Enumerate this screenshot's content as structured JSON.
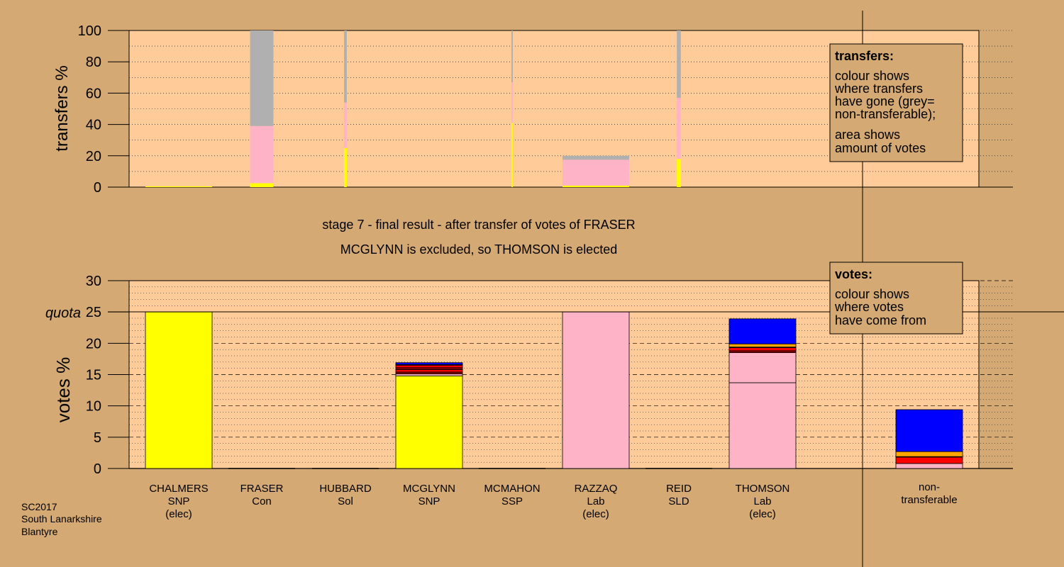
{
  "stage_title": "stage 7 - final result - after transfer of votes of FRASER",
  "stage_subtitle": "MCGLYNN is excluded, so THOMSON is elected",
  "footer": {
    "line1": "SC2017",
    "line2": "South Lanarkshire",
    "line3": "Blantyre"
  },
  "legend_transfers": {
    "title": "transfers:",
    "line1": "colour shows",
    "line2": "where transfers",
    "line3": "have gone (grey=",
    "line4": "non-transferable);",
    "line5": "area shows",
    "line6": "amount of votes"
  },
  "legend_votes": {
    "title": "votes:",
    "line1": "colour shows",
    "line2": "where votes",
    "line3": "have come from"
  },
  "colors": {
    "background": "#d4a973",
    "plot_bg": "#ffcc99",
    "SNP": "#ffff00",
    "Lab": "#ffb3c6",
    "SLD": "#ffa500",
    "Con": "#0000ff",
    "SSP": "#ff0000",
    "Sol": "#8b0000",
    "nontransferable": "#b0b0b0"
  },
  "chart_data": [
    {
      "type": "bar",
      "ylabel": "transfers %",
      "ylim": [
        0,
        100
      ],
      "yticks": [
        0,
        20,
        40,
        60,
        80,
        100
      ],
      "categories": [
        "CHALMERS",
        "FRASER",
        "HUBBARD",
        "MCGLYNN",
        "MCMAHON",
        "RAZZAQ",
        "REID",
        "THOMSON"
      ],
      "segment_order": [
        "SNP",
        "Lab",
        "nontransferable"
      ],
      "bars": [
        {
          "category": "CHALMERS",
          "width_fraction": 1.0,
          "segments": {
            "SNP": 0.5,
            "Lab": 0,
            "nontransferable": 0
          }
        },
        {
          "category": "FRASER",
          "width_fraction": 0.35,
          "segments": {
            "SNP": 2.5,
            "Lab": 36.5,
            "nontransferable": 61
          }
        },
        {
          "category": "HUBBARD",
          "width_fraction": 0.04,
          "segments": {
            "SNP": 25,
            "Lab": 29,
            "nontransferable": 46
          }
        },
        {
          "category": "MCGLYNN",
          "width_fraction": 0,
          "segments": {
            "SNP": 0,
            "Lab": 0,
            "nontransferable": 0
          }
        },
        {
          "category": "MCMAHON",
          "width_fraction": 0.02,
          "segments": {
            "SNP": 41,
            "Lab": 26,
            "nontransferable": 33
          }
        },
        {
          "category": "RAZZAQ",
          "width_fraction": 1.0,
          "segments": {
            "SNP": 1,
            "Lab": 16.5,
            "nontransferable": 2.5
          }
        },
        {
          "category": "REID",
          "width_fraction": 0.06,
          "segments": {
            "SNP": 18,
            "Lab": 39,
            "nontransferable": 43
          }
        },
        {
          "category": "THOMSON",
          "width_fraction": 0,
          "segments": {
            "SNP": 0,
            "Lab": 0,
            "nontransferable": 0
          }
        }
      ]
    },
    {
      "type": "bar",
      "ylabel": "votes %",
      "ylim": [
        0,
        30
      ],
      "yticks": [
        0,
        5,
        10,
        15,
        20,
        25,
        30
      ],
      "quota": 25,
      "quota_label": "quota",
      "categories": [
        {
          "name": "CHALMERS",
          "party": "SNP",
          "status": "(elec)"
        },
        {
          "name": "FRASER",
          "party": "Con",
          "status": ""
        },
        {
          "name": "HUBBARD",
          "party": "Sol",
          "status": ""
        },
        {
          "name": "MCGLYNN",
          "party": "SNP",
          "status": ""
        },
        {
          "name": "MCMAHON",
          "party": "SSP",
          "status": ""
        },
        {
          "name": "RAZZAQ",
          "party": "Lab",
          "status": "(elec)"
        },
        {
          "name": "REID",
          "party": "SLD",
          "status": ""
        },
        {
          "name": "THOMSON",
          "party": "Lab",
          "status": "(elec)"
        }
      ],
      "nontransferable_label": [
        "non-",
        "transferable"
      ],
      "bars": [
        {
          "category": "CHALMERS",
          "segments": [
            {
              "party": "SNP",
              "value": 25
            }
          ]
        },
        {
          "category": "FRASER",
          "segments": []
        },
        {
          "category": "HUBBARD",
          "segments": []
        },
        {
          "category": "MCGLYNN",
          "segments": [
            {
              "party": "SNP",
              "value": 14.8
            },
            {
              "party": "Lab",
              "value": 0.3
            },
            {
              "party": "Sol",
              "value": 0.3
            },
            {
              "party": "SSP",
              "value": 0.4
            },
            {
              "party": "Sol",
              "value": 0.3
            },
            {
              "party": "SSP",
              "value": 0.4
            },
            {
              "party": "SLD",
              "value": 0.1
            },
            {
              "party": "Con",
              "value": 0.3
            }
          ]
        },
        {
          "category": "MCMAHON",
          "segments": []
        },
        {
          "category": "RAZZAQ",
          "segments": [
            {
              "party": "Lab",
              "value": 25
            }
          ]
        },
        {
          "category": "REID",
          "segments": []
        },
        {
          "category": "THOMSON",
          "segments": [
            {
              "party": "Lab",
              "value": 13.7
            },
            {
              "party": "Lab",
              "value": 4.8
            },
            {
              "party": "Sol",
              "value": 0.3
            },
            {
              "party": "SSP",
              "value": 0.5
            },
            {
              "party": "Sol",
              "value": 0.1
            },
            {
              "party": "SLD",
              "value": 0.5
            },
            {
              "party": "Con",
              "value": 4.0
            }
          ]
        },
        {
          "category": "non-transferable",
          "segments": [
            {
              "party": "Lab",
              "value": 0.8
            },
            {
              "party": "SSP",
              "value": 1.0
            },
            {
              "party": "Sol",
              "value": 0.1
            },
            {
              "party": "SLD",
              "value": 0.8
            },
            {
              "party": "Con",
              "value": 6.7
            }
          ]
        }
      ]
    }
  ]
}
